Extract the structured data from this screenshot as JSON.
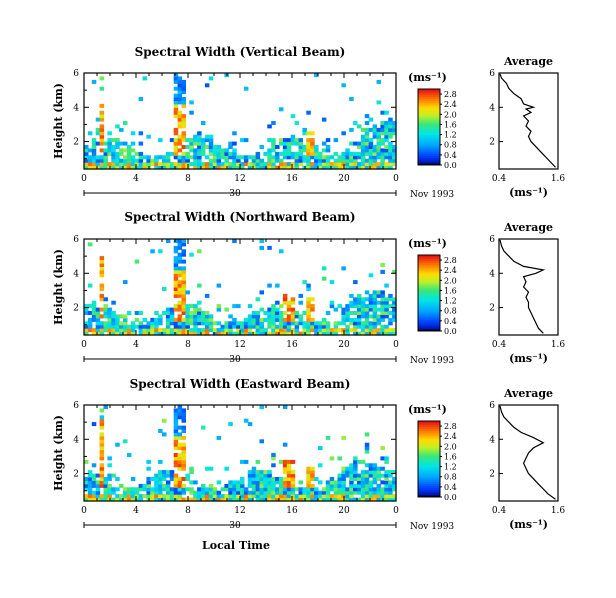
{
  "chart_data": [
    {
      "type": "heatmap",
      "title": "Spectral Width (Vertical Beam)",
      "ylabel": "Height (km)",
      "xlabel": "",
      "x_ticks": [
        "0",
        "4",
        "8",
        "12",
        "16",
        "20",
        "0"
      ],
      "y_ticks": [
        "2",
        "4",
        "6"
      ],
      "xlim": [
        0,
        24
      ],
      "ylim": [
        0.4,
        6
      ],
      "date_day": "30",
      "date_label": "Nov 1993",
      "colorbar_unit": "(ms⁻¹)",
      "colorbar_ticks": [
        "0.0",
        "0.4",
        "0.8",
        "1.2",
        "1.6",
        "2.0",
        "2.4",
        "2.8"
      ],
      "colorbar_range": [
        0,
        3.0
      ],
      "average_panel": {
        "title": "Average",
        "x_ticks": [
          "0.4",
          "1.6"
        ],
        "xlabel": "(ms⁻¹)",
        "y_ticks": [
          "2",
          "4",
          "6"
        ],
        "xlim": [
          0.4,
          1.6
        ],
        "ylim": [
          0.4,
          6
        ],
        "profile": [
          [
            1.55,
            0.5
          ],
          [
            1.45,
            0.8
          ],
          [
            1.35,
            1.1
          ],
          [
            1.25,
            1.4
          ],
          [
            1.15,
            1.7
          ],
          [
            1.05,
            2.0
          ],
          [
            1.0,
            2.3
          ],
          [
            1.05,
            2.6
          ],
          [
            0.95,
            2.9
          ],
          [
            1.0,
            3.2
          ],
          [
            0.9,
            3.5
          ],
          [
            1.05,
            3.7
          ],
          [
            0.95,
            3.9
          ],
          [
            1.1,
            4.0
          ],
          [
            0.9,
            4.2
          ],
          [
            0.85,
            4.5
          ],
          [
            0.7,
            4.8
          ],
          [
            0.6,
            5.1
          ],
          [
            0.55,
            5.4
          ],
          [
            0.45,
            5.7
          ],
          [
            0.42,
            5.95
          ]
        ]
      }
    },
    {
      "type": "heatmap",
      "title": "Spectral Width (Northward Beam)",
      "ylabel": "Height (km)",
      "xlabel": "",
      "x_ticks": [
        "0",
        "4",
        "8",
        "12",
        "16",
        "20",
        "0"
      ],
      "y_ticks": [
        "2",
        "4",
        "6"
      ],
      "xlim": [
        0,
        24
      ],
      "ylim": [
        0.4,
        6
      ],
      "date_day": "30",
      "date_label": "Nov 1993",
      "colorbar_unit": "(ms⁻¹)",
      "colorbar_ticks": [
        "0.0",
        "0.4",
        "0.8",
        "1.2",
        "1.6",
        "2.0",
        "2.4",
        "2.8"
      ],
      "colorbar_range": [
        0,
        3.0
      ],
      "average_panel": {
        "title": "Average",
        "x_ticks": [
          "0.4",
          "1.6"
        ],
        "xlabel": "(ms⁻¹)",
        "y_ticks": [
          "2",
          "4",
          "6"
        ],
        "xlim": [
          0.4,
          1.6
        ],
        "ylim": [
          0.4,
          6
        ],
        "profile": [
          [
            1.3,
            0.5
          ],
          [
            1.2,
            0.8
          ],
          [
            1.15,
            1.1
          ],
          [
            1.1,
            1.4
          ],
          [
            1.05,
            1.7
          ],
          [
            1.0,
            2.0
          ],
          [
            1.0,
            2.3
          ],
          [
            0.95,
            2.6
          ],
          [
            1.0,
            2.9
          ],
          [
            0.9,
            3.2
          ],
          [
            0.95,
            3.5
          ],
          [
            0.9,
            3.8
          ],
          [
            1.15,
            4.0
          ],
          [
            1.3,
            4.2
          ],
          [
            0.9,
            4.4
          ],
          [
            0.7,
            4.7
          ],
          [
            0.6,
            5.0
          ],
          [
            0.5,
            5.3
          ],
          [
            0.45,
            5.6
          ],
          [
            0.42,
            5.95
          ]
        ]
      }
    },
    {
      "type": "heatmap",
      "title": "Spectral Width (Eastward Beam)",
      "ylabel": "Height (km)",
      "xlabel": "Local Time",
      "x_ticks": [
        "0",
        "4",
        "8",
        "12",
        "16",
        "20",
        "0"
      ],
      "y_ticks": [
        "2",
        "4",
        "6"
      ],
      "xlim": [
        0,
        24
      ],
      "ylim": [
        0.4,
        6
      ],
      "date_day": "30",
      "date_label": "Nov 1993",
      "colorbar_unit": "(ms⁻¹)",
      "colorbar_ticks": [
        "0.0",
        "0.4",
        "0.8",
        "1.2",
        "1.6",
        "2.0",
        "2.4",
        "2.8"
      ],
      "colorbar_range": [
        0,
        3.0
      ],
      "average_panel": {
        "title": "Average",
        "x_ticks": [
          "0.4",
          "1.6"
        ],
        "xlabel": "(ms⁻¹)",
        "y_ticks": [
          "2",
          "4",
          "6"
        ],
        "xlim": [
          0.4,
          1.6
        ],
        "ylim": [
          0.4,
          6
        ],
        "profile": [
          [
            1.55,
            0.5
          ],
          [
            1.4,
            0.8
          ],
          [
            1.3,
            1.1
          ],
          [
            1.2,
            1.4
          ],
          [
            1.1,
            1.7
          ],
          [
            1.0,
            2.0
          ],
          [
            0.95,
            2.3
          ],
          [
            0.9,
            2.6
          ],
          [
            0.95,
            2.9
          ],
          [
            1.0,
            3.2
          ],
          [
            1.1,
            3.5
          ],
          [
            1.3,
            3.8
          ],
          [
            1.1,
            4.1
          ],
          [
            0.85,
            4.4
          ],
          [
            0.7,
            4.7
          ],
          [
            0.6,
            5.0
          ],
          [
            0.5,
            5.3
          ],
          [
            0.45,
            5.6
          ],
          [
            0.42,
            5.95
          ]
        ]
      }
    }
  ]
}
